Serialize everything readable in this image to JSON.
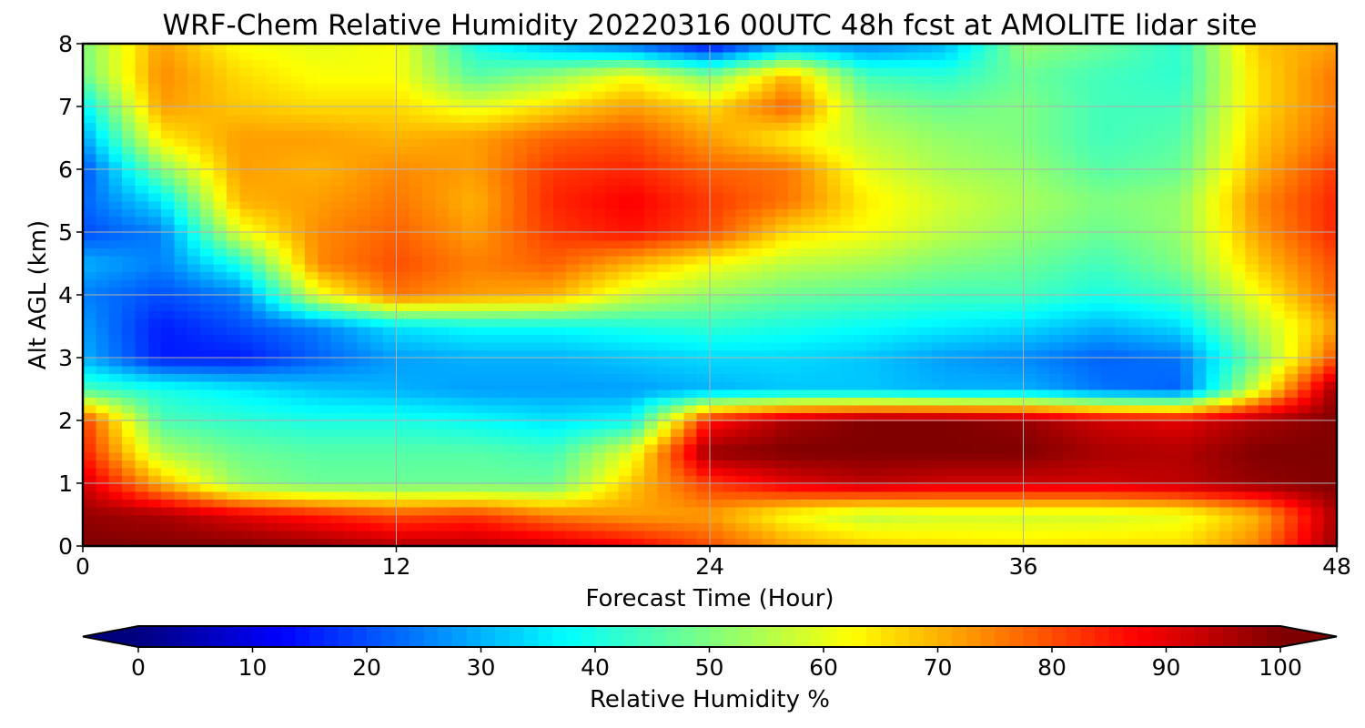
{
  "chart_data": {
    "type": "heatmap",
    "title": "WRF-Chem Relative Humidity 20220316 00UTC 48h fcst at AMOLITE lidar site",
    "xlabel": "Forecast Time (Hour)",
    "ylabel": "Alt AGL (km)",
    "xlim": [
      0,
      48
    ],
    "ylim": [
      0,
      8
    ],
    "xticks": [
      "0",
      "12",
      "24",
      "36",
      "48"
    ],
    "yticks": [
      "0",
      "1",
      "2",
      "3",
      "4",
      "5",
      "6",
      "7",
      "8"
    ],
    "grid": true,
    "colormap": "jet",
    "colorbar": {
      "label": "Relative Humidity %",
      "range": [
        0,
        100
      ],
      "ticks": [
        "0",
        "10",
        "20",
        "30",
        "40",
        "50",
        "60",
        "70",
        "80",
        "90",
        "100"
      ],
      "extend": "both",
      "under_color": "#00007f",
      "over_color": "#7f0000"
    },
    "x": [
      0,
      3,
      6,
      9,
      12,
      15,
      18,
      21,
      24,
      27,
      30,
      33,
      36,
      39,
      42,
      45,
      48
    ],
    "y": [
      0,
      0.5,
      1,
      1.5,
      2,
      2.5,
      3,
      3.5,
      4,
      4.5,
      5,
      5.5,
      6,
      6.5,
      7,
      7.5,
      8
    ],
    "z": [
      [
        100,
        100,
        100,
        98,
        95,
        95,
        93,
        88,
        80,
        72,
        68,
        66,
        65,
        66,
        66,
        75,
        98
      ],
      [
        98,
        96,
        90,
        85,
        80,
        82,
        75,
        72,
        72,
        62,
        56,
        58,
        58,
        58,
        60,
        70,
        96
      ],
      [
        92,
        70,
        52,
        48,
        48,
        48,
        48,
        68,
        82,
        90,
        94,
        92,
        92,
        92,
        94,
        98,
        100
      ],
      [
        85,
        55,
        48,
        46,
        46,
        46,
        44,
        60,
        98,
        100,
        100,
        100,
        100,
        96,
        95,
        100,
        100
      ],
      [
        82,
        45,
        42,
        40,
        40,
        38,
        35,
        38,
        86,
        96,
        100,
        100,
        98,
        92,
        90,
        96,
        100
      ],
      [
        45,
        40,
        36,
        32,
        30,
        28,
        28,
        28,
        30,
        32,
        32,
        30,
        30,
        24,
        22,
        60,
        98
      ],
      [
        30,
        15,
        15,
        22,
        28,
        30,
        30,
        32,
        34,
        34,
        32,
        28,
        26,
        22,
        24,
        50,
        80
      ],
      [
        28,
        15,
        20,
        25,
        35,
        38,
        38,
        40,
        42,
        40,
        38,
        36,
        34,
        30,
        34,
        55,
        72
      ],
      [
        25,
        20,
        25,
        60,
        76,
        72,
        70,
        58,
        52,
        48,
        46,
        44,
        44,
        40,
        44,
        62,
        78
      ],
      [
        30,
        25,
        40,
        74,
        80,
        75,
        78,
        70,
        62,
        56,
        54,
        50,
        48,
        44,
        50,
        68,
        80
      ],
      [
        20,
        25,
        60,
        74,
        78,
        72,
        82,
        86,
        80,
        66,
        62,
        56,
        52,
        48,
        52,
        72,
        84
      ],
      [
        22,
        35,
        70,
        72,
        76,
        70,
        84,
        88,
        82,
        76,
        64,
        58,
        54,
        50,
        52,
        74,
        84
      ],
      [
        20,
        50,
        72,
        70,
        74,
        72,
        82,
        84,
        78,
        76,
        60,
        54,
        52,
        46,
        48,
        70,
        82
      ],
      [
        28,
        64,
        72,
        72,
        70,
        72,
        78,
        80,
        72,
        64,
        56,
        52,
        50,
        44,
        46,
        68,
        78
      ],
      [
        36,
        72,
        68,
        66,
        66,
        60,
        66,
        72,
        66,
        78,
        52,
        48,
        50,
        44,
        44,
        66,
        76
      ],
      [
        48,
        74,
        66,
        62,
        62,
        46,
        52,
        62,
        50,
        70,
        44,
        42,
        48,
        44,
        42,
        66,
        76
      ],
      [
        50,
        72,
        62,
        60,
        62,
        40,
        30,
        22,
        12,
        28,
        25,
        30,
        52,
        48,
        42,
        68,
        72
      ]
    ]
  }
}
